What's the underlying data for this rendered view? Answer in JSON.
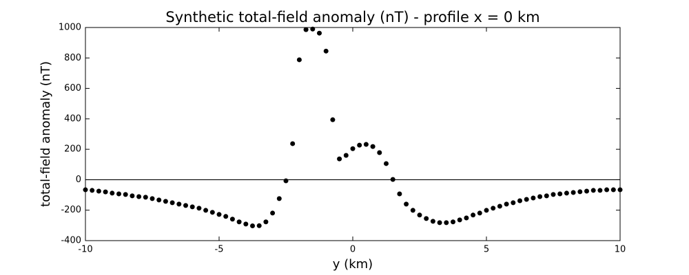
{
  "chart_data": {
    "type": "scatter",
    "title": "Synthetic total-field anomaly (nT) - profile x = 0 km",
    "x_label": "y (km)",
    "y_label": "total-field anomaly (nT)",
    "x": [
      -10,
      -9.75,
      -9.5,
      -9.25,
      -9,
      -8.75,
      -8.5,
      -8.25,
      -8,
      -7.75,
      -7.5,
      -7.25,
      -7,
      -6.75,
      -6.5,
      -6.25,
      -6,
      -5.75,
      -5.5,
      -5.25,
      -5,
      -4.75,
      -4.5,
      -4.25,
      -4,
      -3.75,
      -3.5,
      -3.25,
      -3,
      -2.75,
      -2.5,
      -2.25,
      -2,
      -1.75,
      -1.5,
      -1.25,
      -1,
      -0.75,
      -0.5,
      -0.25,
      0,
      0.25,
      0.5,
      0.75,
      1,
      1.25,
      1.5,
      1.75,
      2,
      2.25,
      2.5,
      2.75,
      3,
      3.25,
      3.5,
      3.75,
      4,
      4.25,
      4.5,
      4.75,
      5,
      5.25,
      5.5,
      5.75,
      6,
      6.25,
      6.5,
      6.75,
      7,
      7.25,
      7.5,
      7.75,
      8,
      8.25,
      8.5,
      8.75,
      9,
      9.25,
      9.5,
      9.75,
      10
    ],
    "series": [
      {
        "color": "#000000",
        "values": [
          -66,
          -70,
          -75,
          -80,
          -88,
          -93,
          -97,
          -106,
          -111,
          -115,
          -124,
          -133,
          -142,
          -151,
          -160,
          -169,
          -178,
          -187,
          -201,
          -214,
          -228,
          -241,
          -259,
          -277,
          -291,
          -303,
          -302,
          -277,
          -219,
          -124,
          -7,
          237,
          788,
          986,
          990,
          963,
          845,
          394,
          137,
          160,
          204,
          227,
          232,
          218,
          178,
          106,
          2,
          -93,
          -160,
          -201,
          -232,
          -255,
          -273,
          -282,
          -282,
          -277,
          -264,
          -251,
          -232,
          -219,
          -201,
          -187,
          -174,
          -160,
          -151,
          -138,
          -129,
          -120,
          -111,
          -106,
          -97,
          -93,
          -88,
          -84,
          -79,
          -75,
          -70,
          -70,
          -66,
          -66,
          -66
        ]
      }
    ],
    "xlim": [
      -10,
      10
    ],
    "ylim": [
      -400,
      1000
    ],
    "xticks": [
      -10,
      -5,
      0,
      5,
      10
    ],
    "yticks": [
      -400,
      -200,
      0,
      200,
      400,
      600,
      800,
      1000
    ],
    "zero_line": true
  }
}
